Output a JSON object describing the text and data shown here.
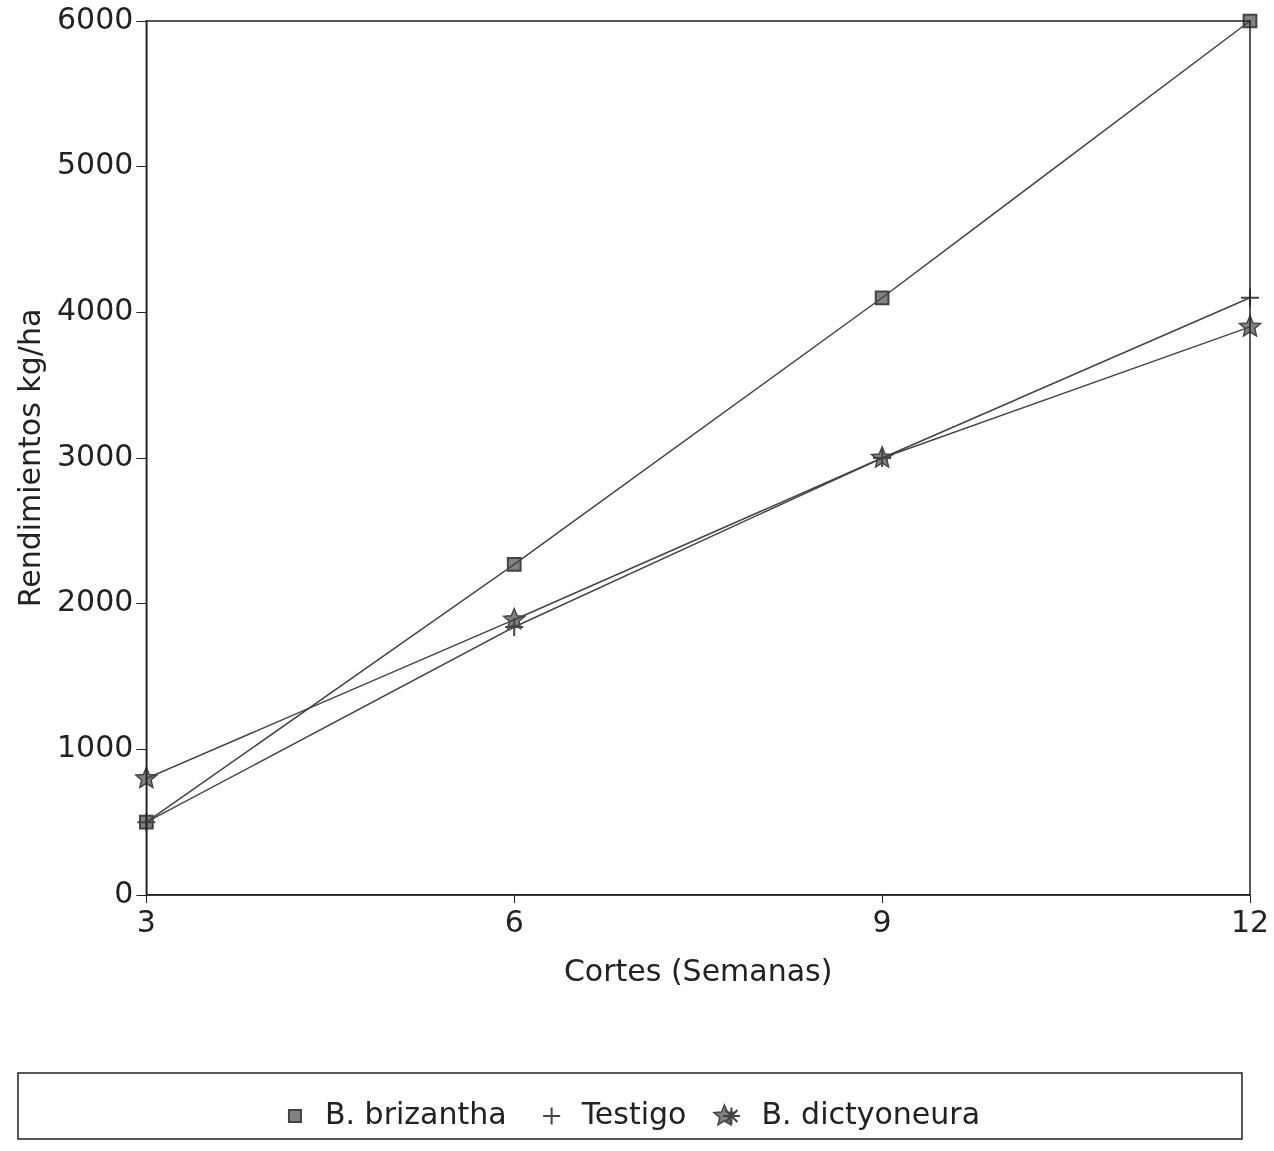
{
  "chart_data": {
    "type": "line",
    "xlabel": "Cortes (Semanas)",
    "ylabel": "Rendimientos kg/ha",
    "x": [
      3,
      6,
      9,
      12
    ],
    "xlim": [
      3,
      12
    ],
    "xticks": [
      3,
      6,
      9,
      12
    ],
    "ylim": [
      0,
      6000
    ],
    "yticks": [
      0,
      1000,
      2000,
      3000,
      4000,
      5000,
      6000
    ],
    "grid": false,
    "legend": "bottom",
    "line_style": "solid",
    "series": [
      {
        "name": "B. brizantha",
        "color": "#444444",
        "marker": "square",
        "values": [
          500,
          2270,
          4100,
          6000
        ]
      },
      {
        "name": "Testigo",
        "color": "#444444",
        "marker": "cross",
        "values": [
          500,
          1840,
          3000,
          4100
        ]
      },
      {
        "name": "B. dictyoneura",
        "color": "#444444",
        "marker": "star",
        "values": [
          800,
          1890,
          3000,
          3900
        ]
      }
    ]
  }
}
